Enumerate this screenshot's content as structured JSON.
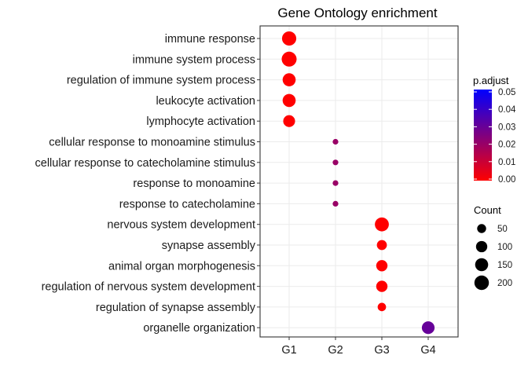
{
  "chart_data": {
    "type": "scatter",
    "title": "Gene Ontology enrichment",
    "xlabel": "",
    "ylabel": "",
    "categories": [
      "G1",
      "G2",
      "G3",
      "G4"
    ],
    "terms": [
      "immune response",
      "immune system process",
      "regulation of immune system process",
      "leukocyte activation",
      "lymphocyte activation",
      "cellular response to monoamine stimulus",
      "cellular response to catecholamine stimulus",
      "response to monoamine",
      "response to catecholamine",
      "nervous system development",
      "synapse assembly",
      "animal organ morphogenesis",
      "regulation of nervous system development",
      "regulation of synapse assembly",
      "organelle organization"
    ],
    "points": [
      {
        "x": "G1",
        "y": "immune response",
        "count": 190,
        "p_adjust": 0.0
      },
      {
        "x": "G1",
        "y": "immune system process",
        "count": 215,
        "p_adjust": 0.0
      },
      {
        "x": "G1",
        "y": "regulation of immune system process",
        "count": 150,
        "p_adjust": 0.0
      },
      {
        "x": "G1",
        "y": "leukocyte activation",
        "count": 150,
        "p_adjust": 0.0
      },
      {
        "x": "G1",
        "y": "lymphocyte activation",
        "count": 115,
        "p_adjust": 0.0
      },
      {
        "x": "G2",
        "y": "cellular response to monoamine stimulus",
        "count": 8,
        "p_adjust": 0.02
      },
      {
        "x": "G2",
        "y": "cellular response to catecholamine stimulus",
        "count": 8,
        "p_adjust": 0.02
      },
      {
        "x": "G2",
        "y": "response to monoamine",
        "count": 8,
        "p_adjust": 0.02
      },
      {
        "x": "G2",
        "y": "response to catecholamine",
        "count": 8,
        "p_adjust": 0.02
      },
      {
        "x": "G3",
        "y": "nervous system development",
        "count": 180,
        "p_adjust": 0.0
      },
      {
        "x": "G3",
        "y": "synapse assembly",
        "count": 70,
        "p_adjust": 0.0
      },
      {
        "x": "G3",
        "y": "animal organ morphogenesis",
        "count": 100,
        "p_adjust": 0.0
      },
      {
        "x": "G3",
        "y": "regulation of nervous system development",
        "count": 100,
        "p_adjust": 0.0
      },
      {
        "x": "G3",
        "y": "regulation of synapse assembly",
        "count": 40,
        "p_adjust": 0.0
      },
      {
        "x": "G4",
        "y": "organelle organization",
        "count": 140,
        "p_adjust": 0.03
      }
    ],
    "color_legend": {
      "title": "p.adjust",
      "ticks": [
        0.05,
        0.04,
        0.03,
        0.02,
        0.01,
        0.0
      ],
      "tick_labels": [
        "0.05",
        "0.04",
        "0.03",
        "0.02",
        "0.01",
        "0.00"
      ],
      "low_color": "#ff0000",
      "high_color": "#0000ff"
    },
    "size_legend": {
      "title": "Count",
      "values": [
        50,
        100,
        150,
        200
      ],
      "labels": [
        "50",
        "100",
        "150",
        "200"
      ]
    },
    "grid": true,
    "legend_position": "right"
  }
}
